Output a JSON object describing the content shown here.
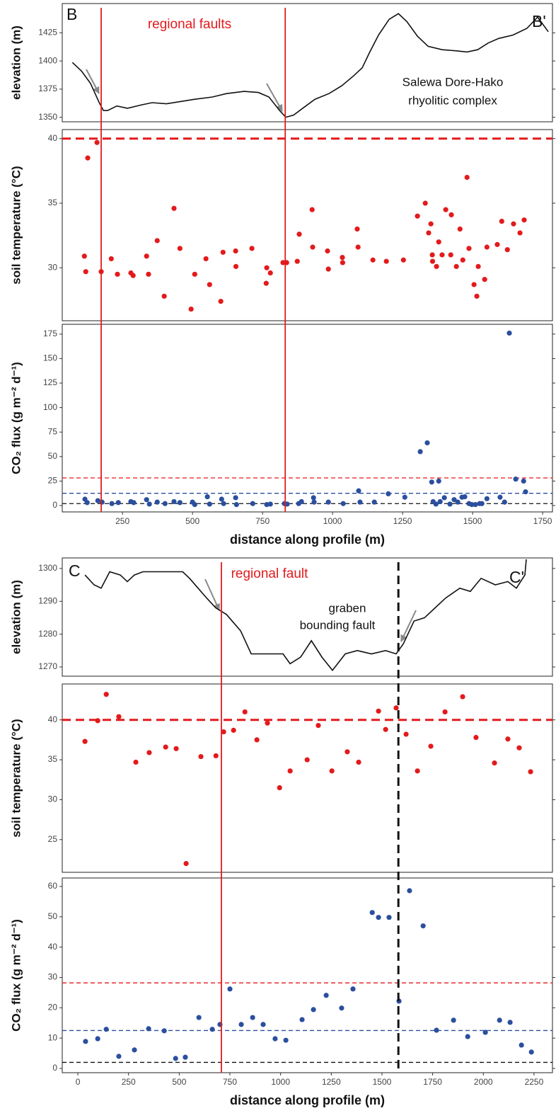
{
  "chart_data": [
    {
      "type": "line",
      "ylabel": "elevation (m)",
      "color": "#111111",
      "xlim": [
        35,
        1785
      ],
      "ylim": [
        1346,
        1451
      ],
      "yticks": [
        1350,
        1375,
        1400,
        1425
      ],
      "x": [
        71,
        104,
        136,
        167,
        182,
        197,
        230,
        268,
        318,
        356,
        407,
        457,
        508,
        571,
        621,
        684,
        735,
        773,
        811,
        833,
        861,
        899,
        937,
        987,
        1033,
        1076,
        1106,
        1131,
        1164,
        1202,
        1235,
        1265,
        1303,
        1341,
        1391,
        1442,
        1480,
        1518,
        1556,
        1593,
        1644,
        1694,
        1732,
        1770
      ],
      "values": [
        1398.7,
        1391,
        1380,
        1363,
        1356,
        1356,
        1360,
        1358,
        1361,
        1363,
        1362,
        1364,
        1366,
        1368,
        1371,
        1373,
        1372,
        1368,
        1356,
        1350,
        1352,
        1359,
        1366,
        1371,
        1378,
        1387,
        1394,
        1407,
        1423,
        1437,
        1442,
        1435,
        1422,
        1413,
        1410,
        1409,
        1408,
        1410,
        1416,
        1420,
        1423,
        1429,
        1439,
        1426
      ],
      "annotations": [
        {
          "text": "B",
          "color": "#111111"
        },
        {
          "text": "B'",
          "color": "#111111"
        },
        {
          "text": "regional faults",
          "color": "#e31a1c"
        },
        {
          "text": "Salewa Dore-Hako",
          "color": "#111111"
        },
        {
          "text": "rhyolitic complex",
          "color": "#111111"
        }
      ],
      "fault_lines": [
        {
          "x": 174,
          "color": "#e31a1c",
          "style": "solid"
        },
        {
          "x": 831,
          "color": "#e31a1c",
          "style": "solid"
        }
      ]
    },
    {
      "type": "scatter",
      "ylabel": "soil temperature (°C)",
      "color": "#e31a1c",
      "xlim": [
        35,
        1785
      ],
      "ylim": [
        25.9,
        40.7
      ],
      "yticks": [
        30,
        35,
        40
      ],
      "ref_lines": [
        {
          "value": 40,
          "color": "#e31a1c",
          "style": "bold-dashed"
        }
      ],
      "x": [
        114,
        119,
        126,
        159,
        174,
        210,
        232,
        280,
        288,
        336,
        343,
        374,
        399,
        434,
        455,
        495,
        508,
        548,
        561,
        601,
        609,
        654,
        655,
        712,
        763,
        765,
        778,
        823,
        836,
        874,
        881,
        927,
        929,
        982,
        985,
        1035,
        1036,
        1088,
        1091,
        1144,
        1192,
        1253,
        1303,
        1331,
        1343,
        1351,
        1356,
        1357,
        1371,
        1379,
        1391,
        1404,
        1424,
        1422,
        1442,
        1455,
        1465,
        1480,
        1487,
        1505,
        1515,
        1520,
        1543,
        1551,
        1588,
        1604,
        1624,
        1646,
        1669,
        1684
      ],
      "values": [
        30.9,
        29.7,
        38.5,
        39.7,
        29.7,
        30.7,
        29.5,
        29.6,
        29.4,
        30.9,
        29.5,
        32.1,
        27.8,
        34.6,
        31.5,
        26.8,
        29.5,
        30.7,
        28.7,
        27.4,
        31.2,
        31.3,
        30.1,
        31.5,
        28.8,
        30.0,
        29.6,
        30.4,
        30.4,
        30.5,
        32.6,
        34.5,
        31.6,
        31.3,
        29.9,
        30.8,
        30.4,
        33.0,
        31.6,
        30.6,
        30.5,
        30.6,
        34.0,
        35.0,
        32.7,
        33.4,
        31.0,
        30.5,
        30.1,
        32.0,
        31.0,
        34.5,
        34.1,
        31.0,
        30.1,
        33.0,
        30.6,
        37.0,
        31.5,
        28.7,
        27.8,
        30.1,
        29.1,
        31.6,
        31.8,
        33.6,
        31.4,
        33.4,
        32.7,
        33.7
      ]
    },
    {
      "type": "scatter",
      "ylabel": "CO₂ flux (g m⁻² d⁻¹)",
      "xlabel": "distance along profile (m)",
      "color": "#2b4f9e",
      "xlim": [
        35,
        1785
      ],
      "ylim": [
        -6.5,
        185
      ],
      "yticks": [
        0,
        25,
        50,
        75,
        100,
        125,
        150,
        175
      ],
      "xticks": [
        250,
        500,
        750,
        1000,
        1250,
        1500,
        1750
      ],
      "ref_lines": [
        {
          "value": 28.2,
          "color": "#e31a1c",
          "style": "dashed"
        },
        {
          "value": 12.5,
          "color": "#2b4f9e",
          "style": "dashed"
        },
        {
          "value": 2,
          "color": "#111111",
          "style": "dashed"
        }
      ],
      "x": [
        116,
        124,
        162,
        177,
        212,
        235,
        280,
        290,
        336,
        346,
        374,
        402,
        434,
        455,
        500,
        508,
        553,
        561,
        604,
        611,
        654,
        657,
        715,
        765,
        778,
        828,
        838,
        879,
        889,
        932,
        934,
        985,
        1038,
        1093,
        1098,
        1149,
        1199,
        1258,
        1313,
        1338,
        1354,
        1359,
        1369,
        1379,
        1384,
        1399,
        1419,
        1434,
        1447,
        1462,
        1472,
        1487,
        1497,
        1510,
        1525,
        1533,
        1551,
        1598,
        1614,
        1631,
        1654,
        1682,
        1689
      ],
      "values": [
        6.5,
        3,
        5,
        3.5,
        2,
        3,
        4,
        3,
        6,
        1.5,
        3.5,
        2,
        4,
        3,
        3.5,
        1,
        9,
        1.5,
        6.5,
        2,
        8,
        1,
        2,
        1,
        1.5,
        2,
        1.5,
        2,
        4,
        8,
        3.5,
        3.5,
        2,
        15,
        3.5,
        3.5,
        12,
        8.5,
        55,
        64,
        24,
        4,
        1.5,
        25,
        4,
        8,
        1.5,
        6,
        3.5,
        8.5,
        9,
        2,
        1,
        1,
        2,
        2,
        7,
        8.5,
        3.5,
        176,
        27,
        25,
        14
      ]
    },
    {
      "type": "line",
      "ylabel": "elevation (m)",
      "color": "#111111",
      "xlim": [
        -77,
        2341
      ],
      "ylim": [
        1267.2,
        1303.2
      ],
      "yticks": [
        1270,
        1280,
        1290,
        1300
      ],
      "x": [
        35,
        80,
        115,
        157,
        209,
        244,
        279,
        321,
        384,
        454,
        517,
        551,
        593,
        635,
        680,
        733,
        803,
        855,
        925,
        1012,
        1047,
        1099,
        1152,
        1204,
        1256,
        1319,
        1378,
        1448,
        1518,
        1570,
        1605,
        1658,
        1710,
        1762,
        1814,
        1884,
        1936,
        1989,
        2059,
        2121,
        2163,
        2205,
        2212
      ],
      "values": [
        1298,
        1295,
        1294,
        1299,
        1298,
        1296,
        1298,
        1299,
        1299,
        1299,
        1299,
        1297,
        1294,
        1291,
        1288,
        1286,
        1281,
        1274,
        1274,
        1274,
        1271,
        1273,
        1278,
        1273,
        1269,
        1274,
        1275,
        1274,
        1275,
        1274,
        1277,
        1284,
        1285,
        1288,
        1291,
        1294,
        1293,
        1297,
        1295,
        1296,
        1294,
        1298,
        1302.8
      ],
      "annotations": [
        {
          "text": "C",
          "color": "#111111"
        },
        {
          "text": "C'",
          "color": "#111111"
        },
        {
          "text": "regional fault",
          "color": "#e31a1c"
        },
        {
          "text": "graben",
          "color": "#111111"
        },
        {
          "text": "bounding fault",
          "color": "#111111"
        }
      ],
      "fault_lines": [
        {
          "x": 708,
          "color": "#e31a1c",
          "style": "solid"
        },
        {
          "x": 1581,
          "color": "#111111",
          "style": "bold-dashed"
        }
      ]
    },
    {
      "type": "scatter",
      "ylabel": "soil temperature (°C)",
      "color": "#e31a1c",
      "xlim": [
        -77,
        2341
      ],
      "ylim": [
        20.9,
        44.5
      ],
      "yticks": [
        25,
        30,
        35,
        40
      ],
      "ref_lines": [
        {
          "value": 40,
          "color": "#e31a1c",
          "style": "bold-dashed"
        }
      ],
      "x": [
        35,
        98,
        140,
        202,
        286,
        352,
        433,
        485,
        534,
        607,
        681,
        719,
        768,
        824,
        883,
        935,
        995,
        1047,
        1131,
        1186,
        1253,
        1329,
        1385,
        1483,
        1518,
        1570,
        1619,
        1675,
        1741,
        1811,
        1898,
        1964,
        2055,
        2121,
        2177,
        2233
      ],
      "values": [
        37.3,
        39.9,
        43.2,
        40.4,
        34.7,
        35.9,
        36.6,
        36.4,
        22.0,
        35.4,
        35.5,
        38.5,
        38.7,
        41.0,
        37.5,
        39.6,
        31.5,
        33.6,
        35.0,
        39.3,
        33.6,
        36.0,
        34.7,
        41.1,
        38.8,
        41.5,
        38.2,
        33.6,
        36.7,
        41.0,
        42.9,
        37.8,
        34.6,
        37.6,
        36.5,
        33.5
      ]
    },
    {
      "type": "scatter",
      "ylabel": "CO₂ flux (g m⁻² d⁻¹)",
      "xlabel": "distance along profile (m)",
      "color": "#2b4f9e",
      "xlim": [
        -77,
        2341
      ],
      "ylim": [
        -1.4,
        62.8
      ],
      "yticks": [
        0,
        10,
        20,
        30,
        40,
        50,
        60
      ],
      "xticks": [
        0,
        250,
        500,
        750,
        1000,
        1250,
        1500,
        1750,
        2000,
        2250
      ],
      "ref_lines": [
        {
          "value": 28.2,
          "color": "#e31a1c",
          "style": "dashed"
        },
        {
          "value": 12.5,
          "color": "#2b4f9e",
          "style": "dashed"
        },
        {
          "value": 2,
          "color": "#111111",
          "style": "dashed"
        }
      ],
      "x": [
        38,
        98,
        140,
        202,
        279,
        349,
        426,
        482,
        530,
        597,
        663,
        701,
        750,
        806,
        862,
        914,
        973,
        1026,
        1106,
        1162,
        1225,
        1301,
        1357,
        1452,
        1483,
        1535,
        1584,
        1636,
        1703,
        1769,
        1853,
        1923,
        2010,
        2080,
        2132,
        2188,
        2237
      ],
      "values": [
        8.9,
        9.8,
        12.9,
        4.0,
        6.1,
        13.1,
        12.4,
        3.3,
        3.7,
        16.8,
        12.9,
        14.5,
        26.2,
        14.5,
        16.8,
        14.5,
        9.8,
        9.3,
        16.1,
        19.4,
        24.1,
        19.9,
        26.2,
        51.4,
        49.8,
        49.8,
        22.2,
        58.6,
        47.0,
        12.6,
        15.9,
        10.5,
        11.9,
        15.9,
        15.2,
        7.7,
        5.4
      ]
    }
  ]
}
